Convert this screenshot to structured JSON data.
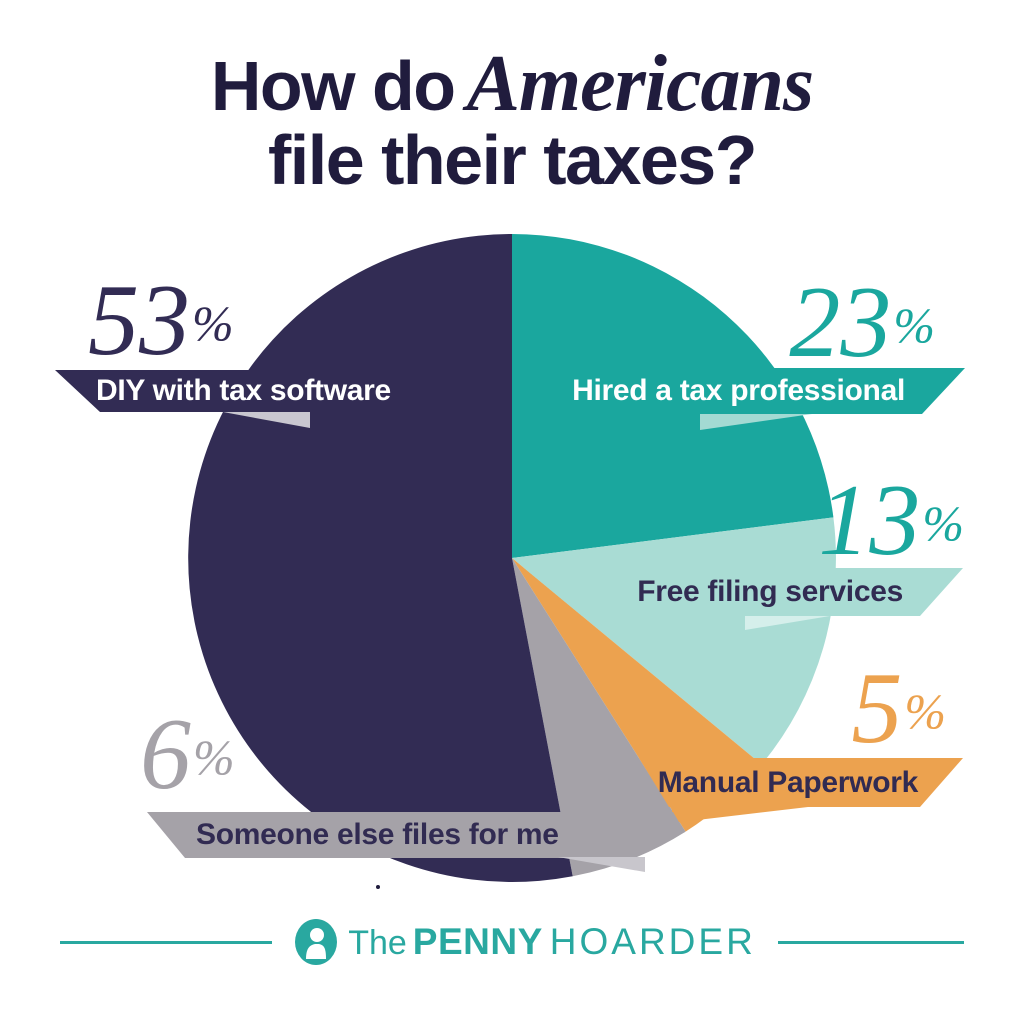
{
  "title": {
    "prefix": "How do",
    "emphasis": "Americans",
    "line2": "file their taxes?"
  },
  "percent_sign": "%",
  "chart_data": {
    "type": "pie",
    "title": "How do Americans file their taxes?",
    "start_angle_deg": -90,
    "direction": "clockwise",
    "total": 100,
    "slices": [
      {
        "label": "Hired a tax professional",
        "value": 23,
        "color": "#1aa79e",
        "label_text_color": "#ffffff",
        "pct_color": "#1aa79e",
        "fold_color": "#a3dad3"
      },
      {
        "label": "Free filing services",
        "value": 13,
        "color": "#a9dcd4",
        "label_text_color": "#312b52",
        "pct_color": "#1aa79e",
        "fold_color": "#d5efeb"
      },
      {
        "label": "Manual Paperwork",
        "value": 5,
        "color": "#eca24f",
        "label_text_color": "#312b52",
        "pct_color": "#eca24f",
        "fold_color": "#eca24f"
      },
      {
        "label": "Someone else files for me",
        "value": 6,
        "color": "#a5a2a8",
        "label_text_color": "#312b52",
        "pct_color": "#a5a2a8",
        "fold_color": "#c8c6cc"
      },
      {
        "label": "DIY with tax software",
        "value": 53,
        "color": "#322c54",
        "label_text_color": "#ffffff",
        "pct_color": "#322c54",
        "fold_color": "#c9c7d0"
      }
    ]
  },
  "footer": {
    "brand_the": "The",
    "brand_penny": "PENNY",
    "brand_hoarder": "HOARDER",
    "accent": "#29a8a0"
  },
  "theme": {
    "background": "#ffffff",
    "title_color": "#201c3d"
  }
}
